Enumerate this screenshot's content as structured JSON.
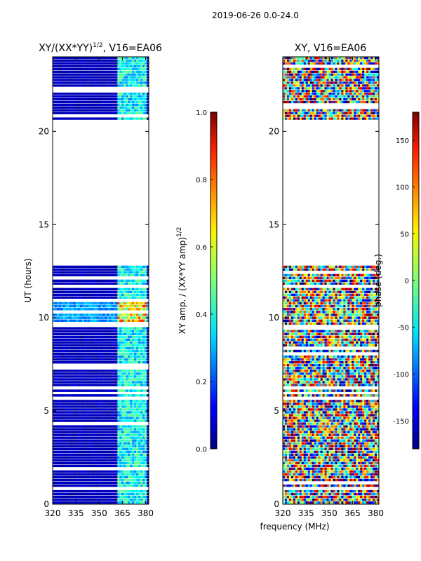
{
  "chart_data": [
    {
      "type": "heatmap",
      "suptitle": "2019-06-26 0.0-24.0",
      "title_main": "XY/(XX*YY)",
      "title_exp": "1/2",
      "title_tail": ", V16=EA06",
      "xlabel": "",
      "ylabel": "UT (hours)",
      "xlim": [
        320,
        382
      ],
      "ylim": [
        0,
        24
      ],
      "xticks": [
        "320",
        "335",
        "350",
        "365",
        "380"
      ],
      "yticks": [
        "0",
        "5",
        "10",
        "15",
        "20"
      ],
      "colorbar": {
        "label_main": "XY amp. / (XX*YY amp)",
        "label_exp": "1/2",
        "range": [
          0.0,
          1.0
        ],
        "ticks": [
          "0.0",
          "0.2",
          "0.4",
          "0.6",
          "0.8",
          "1.0"
        ],
        "colormap": "jet"
      },
      "data_blocks": [
        {
          "ut": [
            0.0,
            5.9
          ],
          "level": "low"
        },
        {
          "ut": [
            6.0,
            9.5
          ],
          "level": "low"
        },
        {
          "ut": [
            9.6,
            11.0
          ],
          "level": "high"
        },
        {
          "ut": [
            11.0,
            12.8
          ],
          "level": "low"
        },
        {
          "ut": [
            20.6,
            24.0
          ],
          "level": "low"
        }
      ],
      "bright_band_mhz": [
        362,
        381
      ]
    },
    {
      "type": "heatmap",
      "title": "XY, V16=EA06",
      "xlabel": "frequency (MHz)",
      "xlim": [
        320,
        382
      ],
      "ylim": [
        0,
        24
      ],
      "xticks": [
        "320",
        "335",
        "350",
        "365",
        "380"
      ],
      "yticks": [
        "0",
        "5",
        "10",
        "15",
        "20"
      ],
      "colorbar": {
        "label": "phase (deg.)",
        "range": [
          -180,
          180
        ],
        "ticks": [
          "-150",
          "-100",
          "-50",
          "0",
          "50",
          "100",
          "150"
        ],
        "colormap": "jet"
      },
      "data_blocks": [
        {
          "ut": [
            0.0,
            5.9
          ]
        },
        {
          "ut": [
            6.0,
            9.5
          ]
        },
        {
          "ut": [
            9.6,
            11.0
          ]
        },
        {
          "ut": [
            11.0,
            12.8
          ]
        },
        {
          "ut": [
            20.6,
            24.0
          ]
        }
      ]
    }
  ]
}
